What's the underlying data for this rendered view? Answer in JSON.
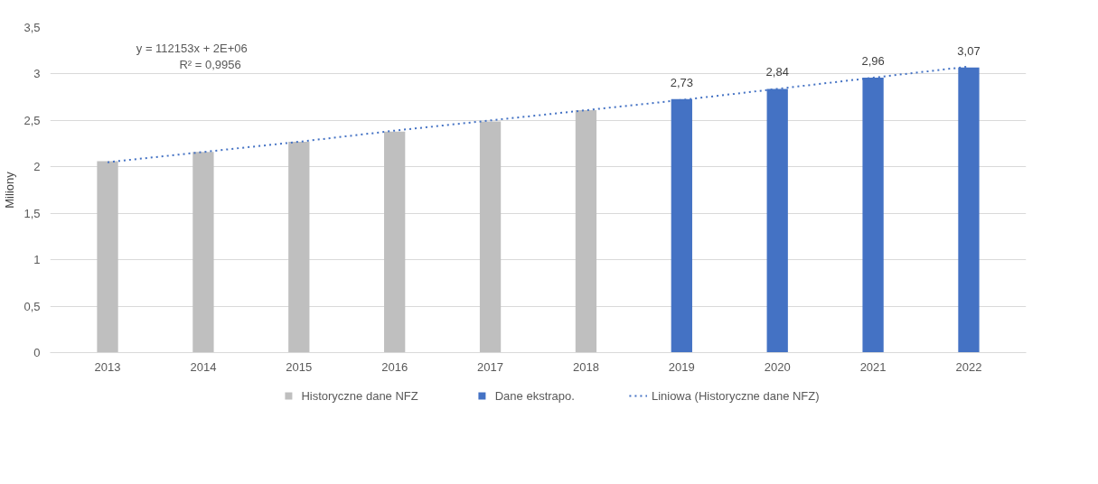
{
  "chart_data": {
    "type": "bar",
    "ylabel": "Miliony",
    "categories": [
      "2013",
      "2014",
      "2015",
      "2016",
      "2017",
      "2018",
      "2019",
      "2020",
      "2021",
      "2022"
    ],
    "series": [
      {
        "name": "Historyczne dane NFZ",
        "color": "#bfbfbf",
        "values": [
          2.06,
          2.16,
          2.27,
          2.38,
          2.49,
          2.61,
          null,
          null,
          null,
          null
        ]
      },
      {
        "name": "Dane ekstrapo.",
        "color": "#4472c4",
        "values": [
          null,
          null,
          null,
          null,
          null,
          null,
          2.73,
          2.84,
          2.96,
          3.07
        ],
        "value_labels": [
          null,
          null,
          null,
          null,
          null,
          null,
          "2,73",
          "2,84",
          "2,96",
          "3,07"
        ]
      },
      {
        "name": "Liniowa (Historyczne dane NFZ)",
        "type": "line",
        "color": "#4472c4",
        "line_style": "dotted",
        "values": [
          2.05,
          2.16,
          2.27,
          2.39,
          2.5,
          2.61,
          2.72,
          2.84,
          2.96,
          3.08
        ]
      }
    ],
    "ylim": [
      0,
      3.5
    ],
    "yticks": [
      0,
      {
        "value": 0.5,
        "label": "0,5"
      },
      1,
      {
        "value": 1.5,
        "label": "1,5"
      },
      2,
      {
        "value": 2.5,
        "label": "2,5"
      },
      3,
      {
        "value": 3.5,
        "label": "3,5"
      }
    ],
    "grid": "y",
    "legend": "bottom",
    "annotations": [
      "y = 112153x + 2E+06",
      "R² = 0,9956"
    ]
  }
}
